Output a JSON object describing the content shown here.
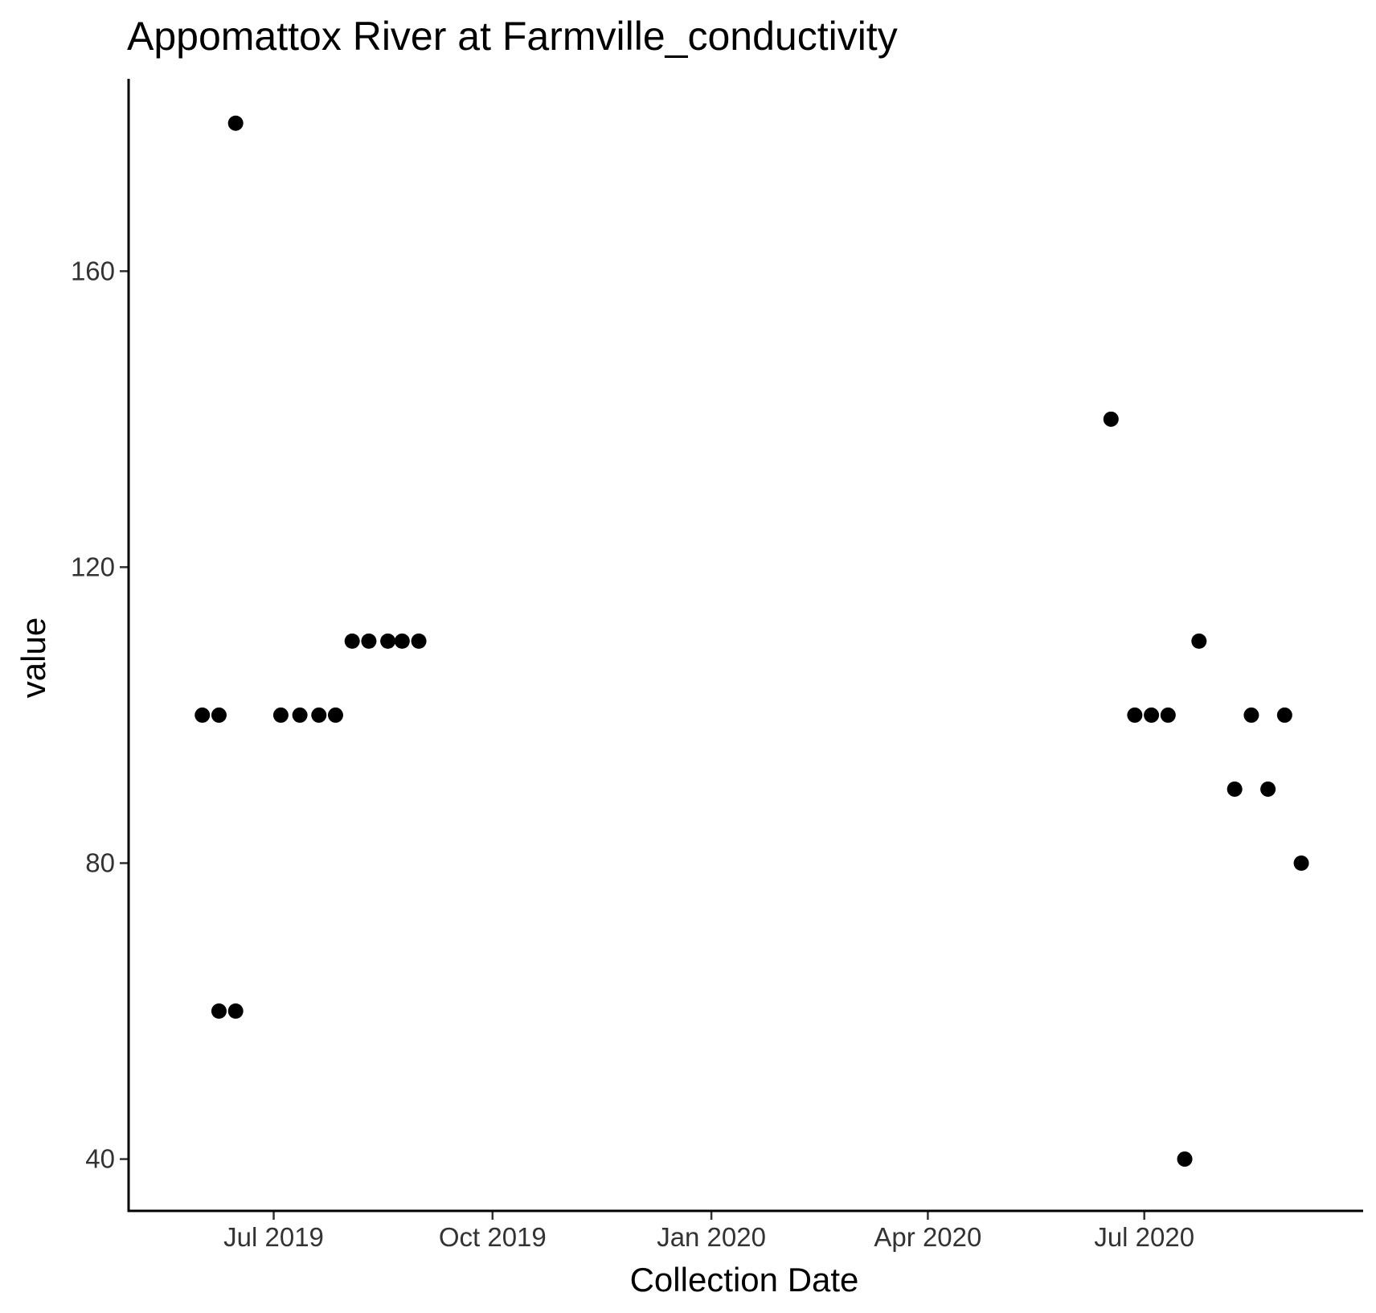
{
  "chart_data": {
    "type": "scatter",
    "title": "Appomattox River at Farmville_conductivity",
    "xlabel": "Collection Date",
    "ylabel": "value",
    "x_axis_type": "date",
    "xlim": [
      "2019-05-01",
      "2020-10-01"
    ],
    "ylim": [
      33,
      186
    ],
    "x_ticks": [
      {
        "date": "2019-07-01",
        "label": "Jul 2019"
      },
      {
        "date": "2019-10-01",
        "label": "Oct 2019"
      },
      {
        "date": "2020-01-01",
        "label": "Jan 2020"
      },
      {
        "date": "2020-04-01",
        "label": "Apr 2020"
      },
      {
        "date": "2020-07-01",
        "label": "Jul 2020"
      }
    ],
    "y_ticks": [
      40,
      80,
      120,
      160
    ],
    "grid": false,
    "legend": "none",
    "point_color": "#000000",
    "points": [
      {
        "x": "2019-06-01",
        "y": 100
      },
      {
        "x": "2019-06-08",
        "y": 100
      },
      {
        "x": "2019-06-08",
        "y": 60
      },
      {
        "x": "2019-06-15",
        "y": 60
      },
      {
        "x": "2019-06-15",
        "y": 180
      },
      {
        "x": "2019-07-04",
        "y": 100
      },
      {
        "x": "2019-07-12",
        "y": 100
      },
      {
        "x": "2019-07-20",
        "y": 100
      },
      {
        "x": "2019-07-27",
        "y": 100
      },
      {
        "x": "2019-08-03",
        "y": 110
      },
      {
        "x": "2019-08-10",
        "y": 110
      },
      {
        "x": "2019-08-18",
        "y": 110
      },
      {
        "x": "2019-08-24",
        "y": 110
      },
      {
        "x": "2019-08-31",
        "y": 110
      },
      {
        "x": "2020-06-17",
        "y": 140
      },
      {
        "x": "2020-06-27",
        "y": 100
      },
      {
        "x": "2020-07-04",
        "y": 100
      },
      {
        "x": "2020-07-11",
        "y": 100
      },
      {
        "x": "2020-07-18",
        "y": 40
      },
      {
        "x": "2020-07-24",
        "y": 110
      },
      {
        "x": "2020-08-08",
        "y": 90
      },
      {
        "x": "2020-08-15",
        "y": 100
      },
      {
        "x": "2020-08-22",
        "y": 90
      },
      {
        "x": "2020-08-29",
        "y": 100
      },
      {
        "x": "2020-09-05",
        "y": 80
      }
    ]
  }
}
